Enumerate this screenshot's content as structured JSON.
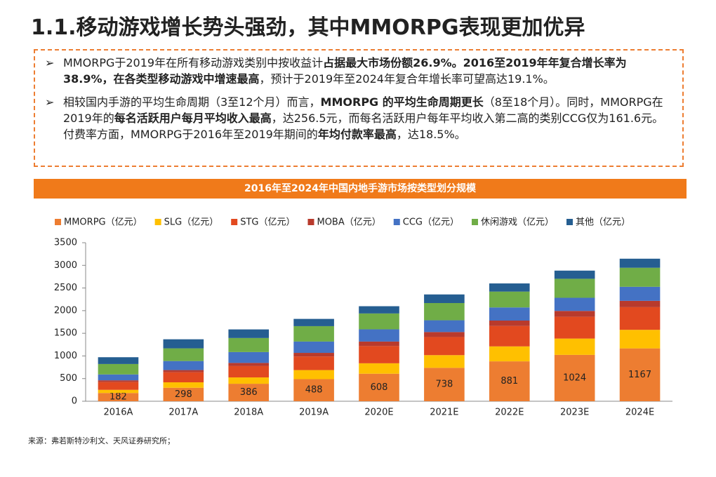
{
  "title": "1.1.移动游戏增长势头强劲，其中MMORPG表现更加优异",
  "bullets": [
    [
      {
        "text": "MMORPG于2019年在所有移动游戏类别中按收益计",
        "bold": false
      },
      {
        "text": "占据最大市场份额26.9%。2016至2019年年复合增长率为38.9%，在各类型移动游戏中增速最高",
        "bold": true
      },
      {
        "text": "，预计于2019年至2024年复合年增长率可望高达19.1%。",
        "bold": false
      }
    ],
    [
      {
        "text": "相较国内手游的平均生命周期（3至12个月）而言，",
        "bold": false
      },
      {
        "text": "MMORPG 的平均生命周期更长",
        "bold": true
      },
      {
        "text": "（8至18个月）。同时，MMORPG在2019年的",
        "bold": false
      },
      {
        "text": "每名活跃用户每月平均收入最高",
        "bold": true
      },
      {
        "text": "，达256.5元，而每名活跃用户每年平均收入第二高的类别CCG仅为161.6元。付费率方面，MMORPG于2016年至2019年期间的",
        "bold": false
      },
      {
        "text": "年均付款率最高",
        "bold": true
      },
      {
        "text": "，达18.5%。",
        "bold": false
      }
    ]
  ],
  "chart_data": {
    "type": "stacked_bar",
    "title": "2016年至2024年中国内地手游市场按类型划分规模",
    "categories": [
      "2016A",
      "2017A",
      "2018A",
      "2019A",
      "2020E",
      "2021E",
      "2022E",
      "2023E",
      "2024E"
    ],
    "series": [
      {
        "name": "MMORPG（亿元）",
        "color": "#ED7D31",
        "values": [
          182,
          298,
          386,
          488,
          608,
          738,
          881,
          1024,
          1167
        ]
      },
      {
        "name": "SLG（亿元）",
        "color": "#FFC000",
        "values": [
          70,
          120,
          140,
          200,
          230,
          280,
          330,
          360,
          410
        ]
      },
      {
        "name": "STG（亿元）",
        "color": "#E2491F",
        "values": [
          170,
          220,
          250,
          300,
          380,
          400,
          450,
          480,
          500
        ]
      },
      {
        "name": "MOBA（亿元）",
        "color": "#B83A2C",
        "values": [
          40,
          50,
          70,
          80,
          100,
          110,
          120,
          130,
          140
        ]
      },
      {
        "name": "CCG（亿元）",
        "color": "#4472C4",
        "values": [
          130,
          200,
          240,
          250,
          270,
          260,
          290,
          290,
          310
        ]
      },
      {
        "name": "休闲游戏（亿元）",
        "color": "#70AD47",
        "values": [
          230,
          280,
          310,
          340,
          350,
          380,
          350,
          420,
          420
        ]
      },
      {
        "name": "其他（亿元）",
        "color": "#255E91",
        "values": [
          150,
          200,
          190,
          160,
          160,
          190,
          180,
          180,
          200
        ]
      }
    ],
    "label_series": 0,
    "ylim": [
      0,
      3500
    ],
    "yticks": [
      0,
      500,
      1000,
      1500,
      2000,
      2500,
      3000,
      3500
    ],
    "grid": false
  },
  "source": "来源：弗若斯特沙利文、天风证券研究所；"
}
